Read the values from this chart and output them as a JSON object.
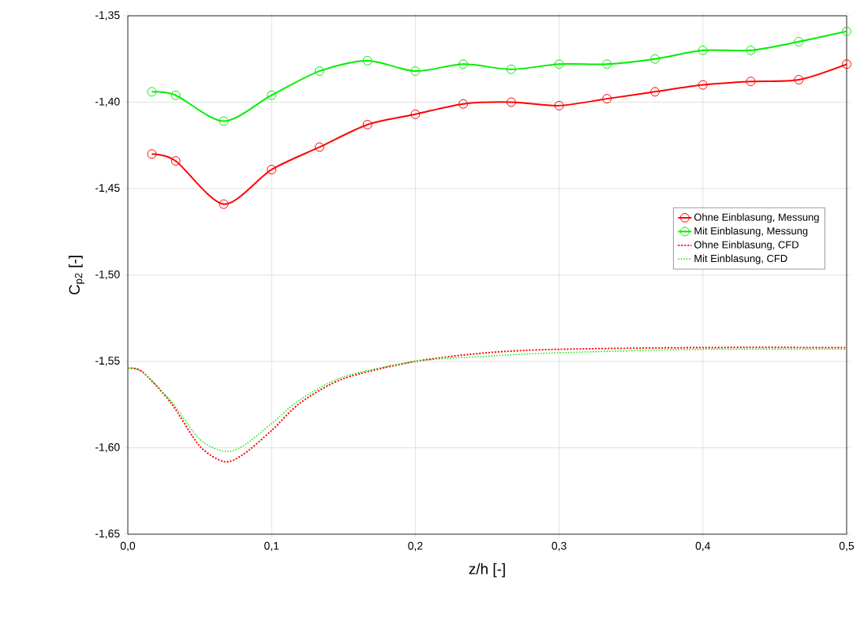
{
  "chart_data": {
    "type": "line",
    "xlabel": "z/h [-]",
    "ylabel": "C$_{p2}$ [-]",
    "xlim": [
      0,
      0.5
    ],
    "ylim": [
      -1.65,
      -1.35
    ],
    "xticks": [
      {
        "value": 0,
        "label": "0,0"
      },
      {
        "value": 0.1,
        "label": "0,1"
      },
      {
        "value": 0.2,
        "label": "0,2"
      },
      {
        "value": 0.3,
        "label": "0,3"
      },
      {
        "value": 0.4,
        "label": "0,4"
      },
      {
        "value": 0.5,
        "label": "0,5"
      }
    ],
    "yticks": [
      {
        "value": -1.65,
        "label": "-1,65"
      },
      {
        "value": -1.6,
        "label": "-1,60"
      },
      {
        "value": -1.55,
        "label": "-1,55"
      },
      {
        "value": -1.5,
        "label": "-1,50"
      },
      {
        "value": -1.45,
        "label": "-1,45"
      },
      {
        "value": -1.4,
        "label": "-1,40"
      },
      {
        "value": -1.35,
        "label": "-1,35"
      }
    ],
    "grid": true,
    "legend": "right",
    "series": [
      {
        "name": "Ohne Einblasung, Messung",
        "color": "#ff0000",
        "marker": "circle",
        "line_style": "solid",
        "x": [
          0.0167,
          0.0333,
          0.0667,
          0.1,
          0.1333,
          0.1667,
          0.2,
          0.2333,
          0.2667,
          0.3,
          0.3333,
          0.3667,
          0.4,
          0.4333,
          0.4667,
          0.5
        ],
        "values": [
          -1.43,
          -1.434,
          -1.459,
          -1.439,
          -1.426,
          -1.413,
          -1.407,
          -1.401,
          -1.4,
          -1.402,
          -1.398,
          -1.394,
          -1.39,
          -1.388,
          -1.387,
          -1.378
        ]
      },
      {
        "name": "Mit Einblasung, Messung",
        "color": "#00ee00",
        "marker": "circle",
        "line_style": "solid",
        "x": [
          0.0167,
          0.0333,
          0.0667,
          0.1,
          0.1333,
          0.1667,
          0.2,
          0.2333,
          0.2667,
          0.3,
          0.3333,
          0.3667,
          0.4,
          0.4333,
          0.4667,
          0.5
        ],
        "values": [
          -1.394,
          -1.396,
          -1.411,
          -1.396,
          -1.382,
          -1.376,
          -1.382,
          -1.378,
          -1.381,
          -1.378,
          -1.378,
          -1.375,
          -1.37,
          -1.37,
          -1.365,
          -1.359
        ]
      },
      {
        "name": "Ohne Einblasung, CFD",
        "color": "#ff0000",
        "marker": "none",
        "line_style": "dotted",
        "x": [
          0,
          0.01,
          0.03,
          0.05,
          0.067,
          0.08,
          0.1,
          0.12,
          0.15,
          0.2,
          0.25,
          0.3,
          0.4,
          0.5
        ],
        "values": [
          -1.554,
          -1.556,
          -1.574,
          -1.599,
          -1.608,
          -1.604,
          -1.59,
          -1.574,
          -1.56,
          -1.55,
          -1.545,
          -1.543,
          -1.542,
          -1.542
        ]
      },
      {
        "name": "Mit Einblasung, CFD",
        "color": "#00ee00",
        "marker": "none",
        "line_style": "dotted",
        "x": [
          0,
          0.01,
          0.03,
          0.05,
          0.067,
          0.08,
          0.1,
          0.12,
          0.15,
          0.2,
          0.25,
          0.3,
          0.4,
          0.5
        ],
        "values": [
          -1.554,
          -1.556,
          -1.573,
          -1.595,
          -1.602,
          -1.599,
          -1.586,
          -1.572,
          -1.559,
          -1.55,
          -1.547,
          -1.545,
          -1.543,
          -1.543
        ]
      }
    ]
  }
}
